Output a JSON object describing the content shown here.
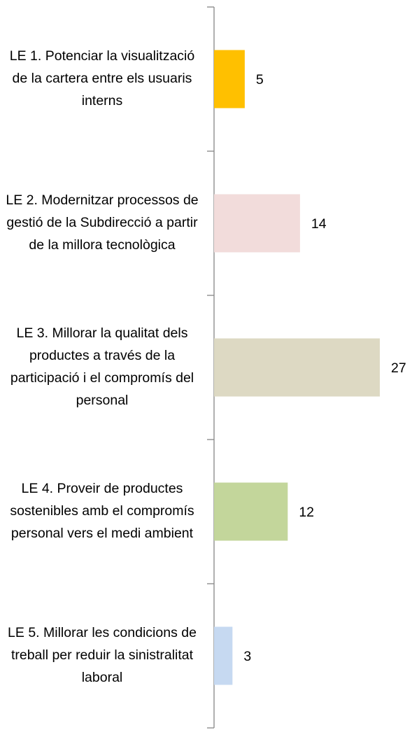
{
  "chart_data": {
    "type": "barh",
    "categories": [
      "LE 1. Potenciar la visualització de la cartera entre els usuaris interns",
      "LE 2. Modernitzar processos de gestió de la Subdirecció a partir de la millora tecnològica",
      "LE 3. Millorar la qualitat dels productes a través de la participació i el compromís del personal",
      "LE 4. Proveir de productes sostenibles amb el compromís personal vers el medi ambient",
      "LE 5. Millorar les condicions de treball per reduir la sinistralitat laboral"
    ],
    "values": [
      5,
      14,
      27,
      12,
      3
    ],
    "colors": [
      "#ffc000",
      "#f2dcdb",
      "#ddd9c3",
      "#c3d69b",
      "#c6d9f1"
    ]
  }
}
